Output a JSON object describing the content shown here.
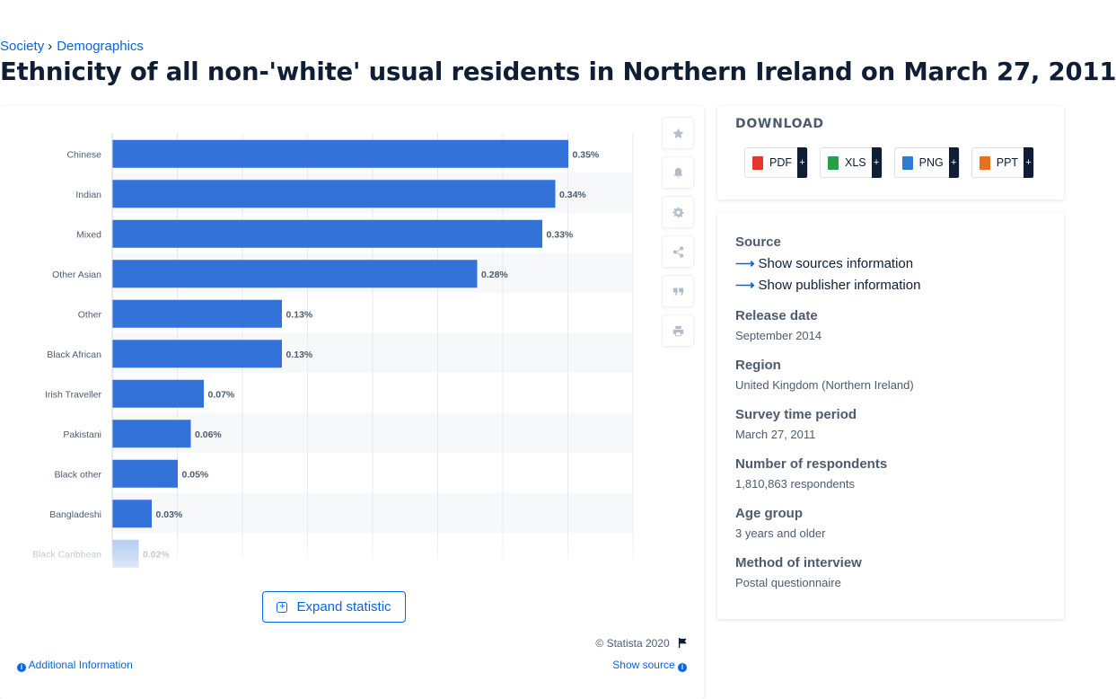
{
  "breadcrumb": {
    "items": [
      "Society",
      "Demographics"
    ],
    "separator": "›"
  },
  "page_title": "Ethnicity of all non-'white' usual residents in Northern Ireland on March 27, 2011",
  "chart_data": {
    "type": "bar",
    "orientation": "horizontal",
    "categories": [
      "Chinese",
      "Indian",
      "Mixed",
      "Other Asian",
      "Other",
      "Black African",
      "Irish Traveller",
      "Pakistani",
      "Black other",
      "Bangladeshi",
      "Black Caribbean"
    ],
    "values": [
      0.35,
      0.34,
      0.33,
      0.28,
      0.13,
      0.13,
      0.07,
      0.06,
      0.05,
      0.03,
      0.02
    ],
    "value_labels": [
      "0.35%",
      "0.34%",
      "0.33%",
      "0.28%",
      "0.13%",
      "0.13%",
      "0.07%",
      "0.06%",
      "0.05%",
      "0.03%",
      "0.02%"
    ],
    "xlim": [
      0,
      0.4
    ],
    "grid": true,
    "bar_color": "#3272d9",
    "title": "",
    "xlabel": "",
    "ylabel": ""
  },
  "chart_tools": [
    "star-icon",
    "bell-icon",
    "gear-icon",
    "share-icon",
    "quote-icon",
    "print-icon"
  ],
  "expand_label": "Expand statistic",
  "copyright": "© Statista 2020",
  "additional_info": "Additional Information",
  "show_source": "Show source",
  "download": {
    "title": "DOWNLOAD",
    "buttons": [
      {
        "label": "PDF",
        "color": "#e2372b"
      },
      {
        "label": "XLS",
        "color": "#27a046"
      },
      {
        "label": "PNG",
        "color": "#2d7dd2"
      },
      {
        "label": "PPT",
        "color": "#e8711c"
      }
    ],
    "plus": "+"
  },
  "meta": {
    "source_head": "Source",
    "show_sources": "Show sources information",
    "show_publisher": "Show publisher information",
    "release_head": "Release date",
    "release_val": "September 2014",
    "region_head": "Region",
    "region_val": "United Kingdom (Northern Ireland)",
    "survey_head": "Survey time period",
    "survey_val": "March 27, 2011",
    "respondents_head": "Number of respondents",
    "respondents_val": "1,810,863 respondents",
    "age_head": "Age group",
    "age_val": "3 years and older",
    "method_head": "Method of interview",
    "method_val": "Postal questionnaire"
  }
}
